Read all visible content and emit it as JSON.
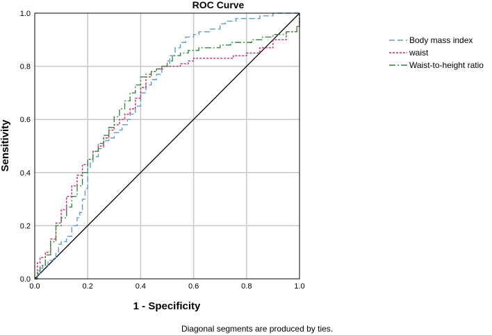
{
  "chart_data": {
    "type": "line",
    "title": "ROC Curve",
    "xlabel": "1 - Specificity",
    "ylabel": "Sensitivity",
    "xlim": [
      0,
      1
    ],
    "ylim": [
      0,
      1
    ],
    "xticks": [
      "0.0",
      "0.2",
      "0.4",
      "0.6",
      "0.8",
      "1.0"
    ],
    "yticks": [
      "0.0",
      "0.2",
      "0.4",
      "0.6",
      "0.8",
      "1.0"
    ],
    "grid": true,
    "legend_position": "right",
    "footnote": "Diagonal segments are produced by ties.",
    "reference_line": {
      "name": "reference",
      "x": [
        0,
        1
      ],
      "y": [
        0,
        1
      ],
      "color": "#000000"
    },
    "series": [
      {
        "name": "Body mass index",
        "color": "#5b9bd5",
        "dash": "dashed",
        "x": [
          0,
          0.01,
          0.02,
          0.03,
          0.05,
          0.07,
          0.08,
          0.09,
          0.1,
          0.12,
          0.14,
          0.16,
          0.17,
          0.18,
          0.19,
          0.2,
          0.21,
          0.22,
          0.24,
          0.26,
          0.28,
          0.3,
          0.32,
          0.33,
          0.35,
          0.36,
          0.38,
          0.4,
          0.42,
          0.44,
          0.46,
          0.48,
          0.49,
          0.51,
          0.53,
          0.55,
          0.57,
          0.6,
          0.62,
          0.66,
          0.7,
          0.72,
          0.76,
          0.8,
          0.85,
          0.9,
          0.96,
          1.0
        ],
        "y": [
          0,
          0.02,
          0.04,
          0.05,
          0.07,
          0.08,
          0.1,
          0.13,
          0.14,
          0.16,
          0.2,
          0.23,
          0.25,
          0.3,
          0.34,
          0.42,
          0.44,
          0.46,
          0.49,
          0.52,
          0.53,
          0.55,
          0.56,
          0.58,
          0.6,
          0.62,
          0.65,
          0.7,
          0.73,
          0.75,
          0.77,
          0.79,
          0.8,
          0.84,
          0.87,
          0.89,
          0.91,
          0.92,
          0.93,
          0.94,
          0.96,
          0.97,
          0.98,
          0.98,
          0.99,
          1.0,
          1.0,
          1.0
        ]
      },
      {
        "name": "waist",
        "color": "#d6245a",
        "dash": "dotted",
        "x": [
          0,
          0.01,
          0.02,
          0.04,
          0.06,
          0.08,
          0.1,
          0.12,
          0.14,
          0.16,
          0.18,
          0.2,
          0.22,
          0.24,
          0.26,
          0.28,
          0.3,
          0.32,
          0.34,
          0.36,
          0.38,
          0.4,
          0.42,
          0.44,
          0.46,
          0.48,
          0.5,
          0.52,
          0.55,
          0.58,
          0.6,
          0.62,
          0.65,
          0.7,
          0.75,
          0.8,
          0.85,
          0.9,
          0.95,
          0.99,
          1.0
        ],
        "y": [
          0,
          0.06,
          0.08,
          0.1,
          0.15,
          0.21,
          0.26,
          0.31,
          0.35,
          0.39,
          0.43,
          0.45,
          0.48,
          0.5,
          0.53,
          0.56,
          0.58,
          0.6,
          0.62,
          0.64,
          0.68,
          0.72,
          0.76,
          0.78,
          0.79,
          0.8,
          0.8,
          0.8,
          0.81,
          0.82,
          0.83,
          0.83,
          0.83,
          0.83,
          0.84,
          0.85,
          0.87,
          0.9,
          0.93,
          0.95,
          1.0
        ]
      },
      {
        "name": "Waist-to-height ratio",
        "color": "#2e8b3a",
        "dash": "dashdot",
        "x": [
          0,
          0.01,
          0.02,
          0.04,
          0.06,
          0.08,
          0.1,
          0.12,
          0.14,
          0.16,
          0.18,
          0.2,
          0.22,
          0.24,
          0.26,
          0.28,
          0.3,
          0.32,
          0.34,
          0.36,
          0.38,
          0.4,
          0.42,
          0.44,
          0.46,
          0.48,
          0.5,
          0.52,
          0.55,
          0.58,
          0.62,
          0.66,
          0.7,
          0.74,
          0.78,
          0.82,
          0.86,
          0.9,
          0.95,
          0.99,
          1.0
        ],
        "y": [
          0,
          0.03,
          0.05,
          0.09,
          0.14,
          0.2,
          0.23,
          0.27,
          0.31,
          0.35,
          0.4,
          0.45,
          0.48,
          0.51,
          0.54,
          0.57,
          0.61,
          0.64,
          0.67,
          0.7,
          0.73,
          0.76,
          0.77,
          0.78,
          0.79,
          0.8,
          0.82,
          0.84,
          0.85,
          0.86,
          0.87,
          0.87,
          0.88,
          0.89,
          0.89,
          0.9,
          0.91,
          0.92,
          0.93,
          0.95,
          1.0
        ]
      }
    ]
  }
}
